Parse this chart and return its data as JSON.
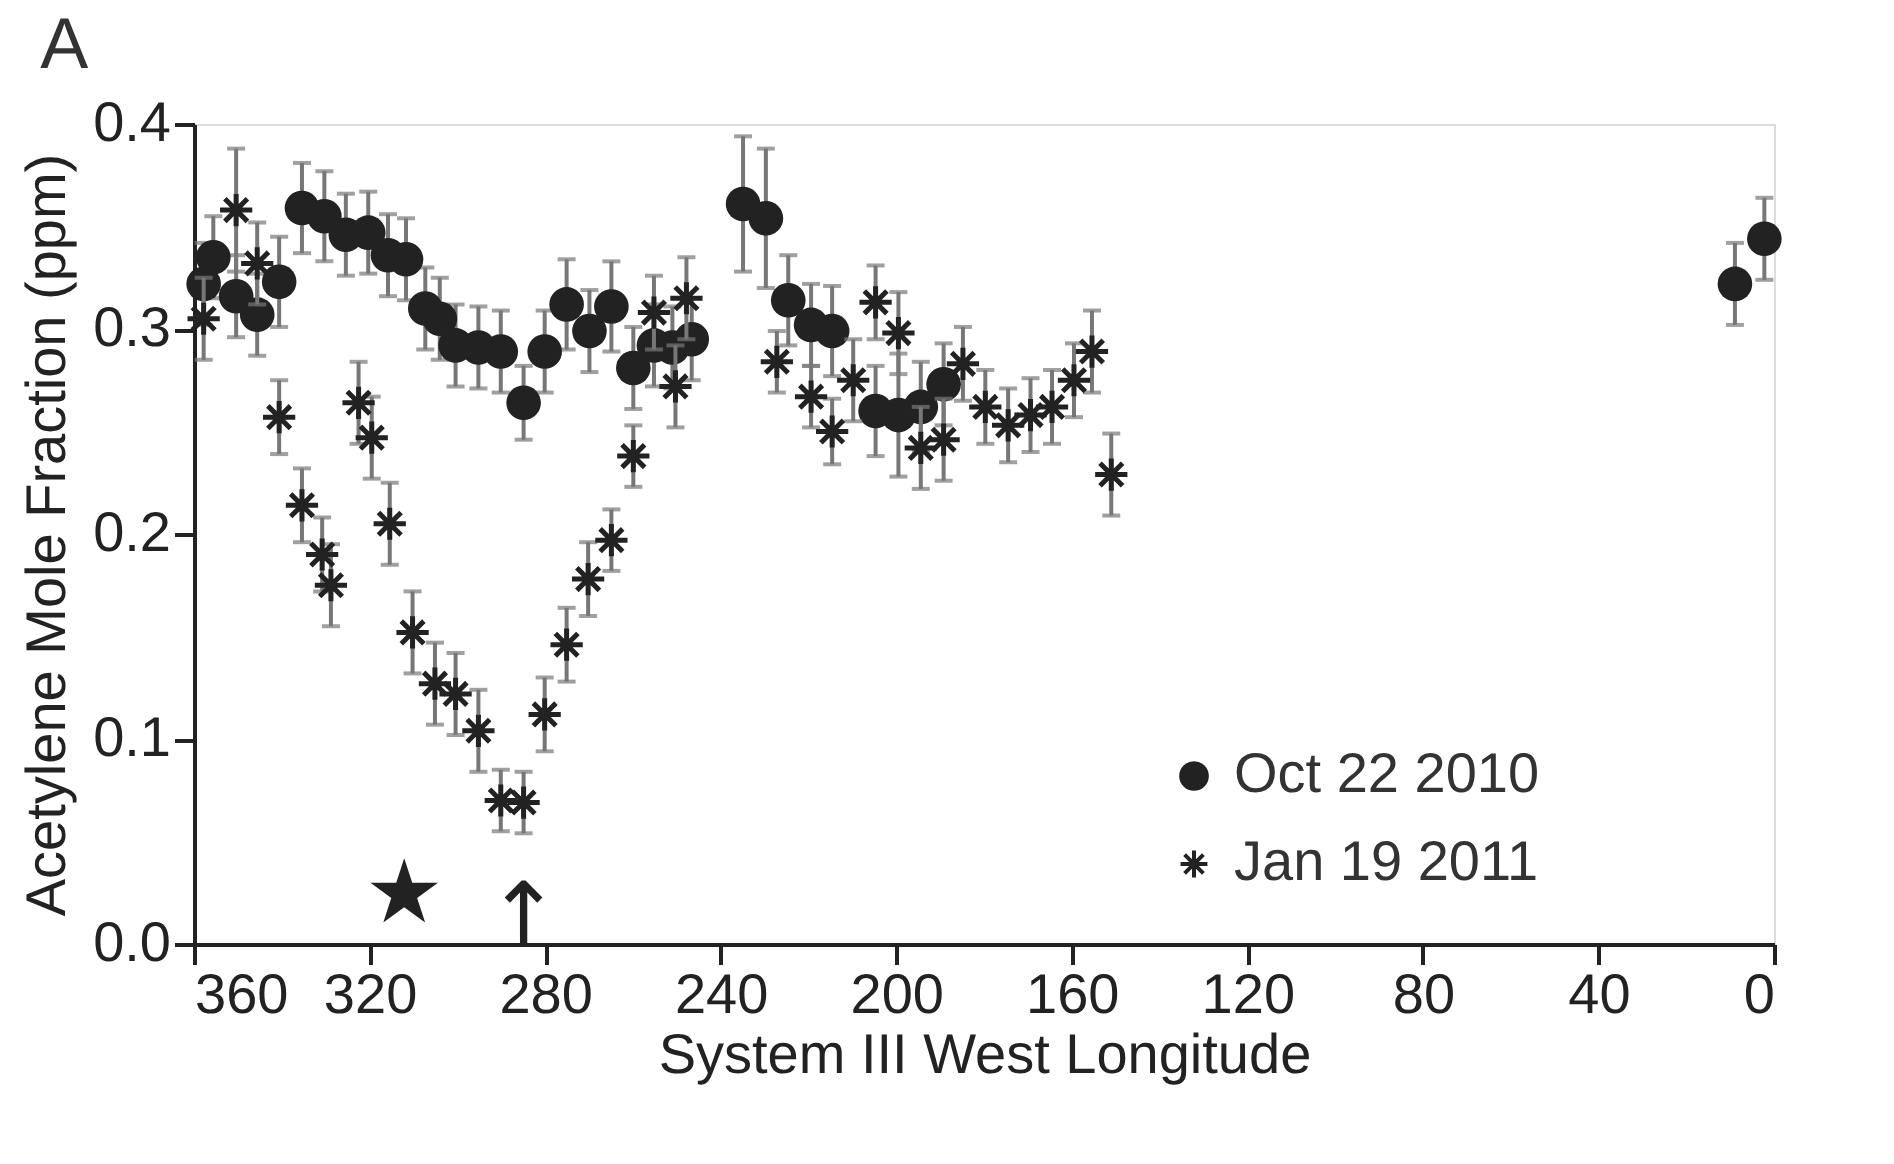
{
  "chart_data": {
    "type": "scatter",
    "title": "A",
    "xlabel": "System III West Longitude",
    "ylabel": "Acetylene Mole Fraction (ppm)",
    "xlim": [
      360,
      0
    ],
    "xticks": [
      360,
      320,
      280,
      240,
      200,
      160,
      120,
      80,
      40,
      0
    ],
    "ylim": [
      0,
      0.4
    ],
    "yticks": [
      {
        "value": 0,
        "label": "0.0"
      },
      0.1,
      0.2,
      0.3,
      0.4
    ],
    "legend": "bottom right",
    "grid": false,
    "series": [
      {
        "name": "Oct 22 2010",
        "color": "#222222",
        "marker": "circle",
        "x": [
          357.8,
          355.6,
          350.4,
          345.6,
          340.6,
          335.4,
          330.3,
          325.4,
          320.3,
          315.8,
          311.7,
          307.3,
          304.0,
          300.4,
          295.2,
          290.1,
          284.9,
          280.1,
          275.1,
          269.9,
          264.9,
          259.9,
          255.2,
          251.0,
          246.6,
          234.9,
          229.7,
          224.6,
          219.4,
          214.6,
          204.7,
          199.5,
          194.4,
          189.2,
          8.9,
          2.2
        ],
        "values": [
          0.322,
          0.335,
          0.316,
          0.307,
          0.323,
          0.359,
          0.355,
          0.346,
          0.347,
          0.336,
          0.334,
          0.31,
          0.305,
          0.292,
          0.291,
          0.289,
          0.264,
          0.289,
          0.312,
          0.299,
          0.311,
          0.281,
          0.292,
          0.291,
          0.295,
          0.361,
          0.354,
          0.314,
          0.302,
          0.299,
          0.26,
          0.258,
          0.262,
          0.273,
          0.322,
          0.344
        ],
        "errors": [
          0.02,
          0.02,
          0.02,
          0.02,
          0.022,
          0.022,
          0.022,
          0.02,
          0.02,
          0.02,
          0.02,
          0.02,
          0.02,
          0.02,
          0.02,
          0.02,
          0.018,
          0.02,
          0.022,
          0.02,
          0.022,
          0.02,
          0.02,
          0.02,
          0.02,
          0.033,
          0.034,
          0.022,
          0.02,
          0.022,
          0.022,
          0.03,
          0.022,
          0.02,
          0.02,
          0.02
        ]
      },
      {
        "name": "Jan 19 2011",
        "color": "#222222",
        "marker": "cross",
        "x": [
          357.8,
          350.4,
          345.6,
          340.6,
          335.4,
          330.8,
          328.8,
          322.5,
          319.5,
          315.4,
          310.2,
          305.1,
          300.4,
          295.2,
          290.1,
          284.9,
          280.1,
          275.1,
          270.2,
          264.9,
          259.9,
          255.2,
          250.3,
          247.8,
          227.2,
          219.4,
          214.6,
          209.8,
          204.7,
          199.5,
          194.4,
          189.2,
          184.8,
          179.7,
          174.5,
          169.4,
          164.5,
          159.5,
          155.4,
          151.0
        ],
        "values": [
          0.305,
          0.358,
          0.332,
          0.257,
          0.214,
          0.19,
          0.175,
          0.264,
          0.247,
          0.205,
          0.152,
          0.127,
          0.122,
          0.104,
          0.07,
          0.069,
          0.112,
          0.146,
          0.178,
          0.197,
          0.238,
          0.308,
          0.272,
          0.315,
          0.284,
          0.267,
          0.25,
          0.275,
          0.313,
          0.298,
          0.242,
          0.246,
          0.283,
          0.262,
          0.253,
          0.258,
          0.262,
          0.275,
          0.289,
          0.229
        ],
        "errors": [
          0.02,
          0.03,
          0.02,
          0.018,
          0.018,
          0.018,
          0.02,
          0.02,
          0.02,
          0.02,
          0.02,
          0.02,
          0.02,
          0.02,
          0.015,
          0.015,
          0.018,
          0.018,
          0.018,
          0.015,
          0.015,
          0.018,
          0.02,
          0.02,
          0.015,
          0.015,
          0.016,
          0.02,
          0.018,
          0.02,
          0.02,
          0.02,
          0.018,
          0.018,
          0.018,
          0.018,
          0.018,
          0.018,
          0.02,
          0.02
        ]
      }
    ],
    "annotations": [
      "★",
      {
        "text": "↑",
        "x": 284.9,
        "y": 0.069
      }
    ]
  }
}
